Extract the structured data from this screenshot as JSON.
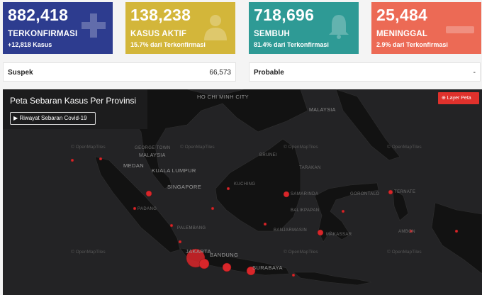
{
  "cards": [
    {
      "value": "882,418",
      "label": "TERKONFIRMASI",
      "sub": "+12,818 Kasus",
      "color": "#2d3c8f",
      "icon": "plus-icon"
    },
    {
      "value": "138,238",
      "label": "KASUS AKTIF",
      "sub": "15.7% dari Terkonfirmasi",
      "color": "#d3b63a",
      "icon": "patient-icon"
    },
    {
      "value": "718,696",
      "label": "SEMBUH",
      "sub": "81.4% dari Terkonfirmasi",
      "color": "#2e9a95",
      "icon": "bell-icon"
    },
    {
      "value": "25,484",
      "label": "MENINGGAL",
      "sub": "2.9% dari Terkonfirmasi",
      "color": "#ec6a55",
      "icon": "minus-icon"
    }
  ],
  "stats": [
    {
      "label": "Suspek",
      "value": "66,573"
    },
    {
      "label": "Probable",
      "value": "-"
    }
  ],
  "map": {
    "title": "Peta Sebaran Kasus Per Provinsi",
    "history_button": "▶ Riwayat Sebaran Covid-19",
    "layer_button": "⊕ Layer Peta",
    "tiles_credit": "© OpenMapTiles",
    "labels": [
      "HO CHI MINH CITY",
      "GEORGE TOWN",
      "MALAYSIA",
      "MEDAN",
      "KUALA LUMPUR",
      "SINGAPORE",
      "PADANG",
      "PALEMBANG",
      "JAKARTA",
      "BANDUNG",
      "SURABAYA",
      "BRUNEI",
      "TARAKAN",
      "KUCHING",
      "SAMARINDA",
      "BALIKPAPAN",
      "BANJARMASIN",
      "GORONTALO",
      "MAKASSAR",
      "TERNATE",
      "AMBON",
      "MALAYSIA"
    ]
  }
}
